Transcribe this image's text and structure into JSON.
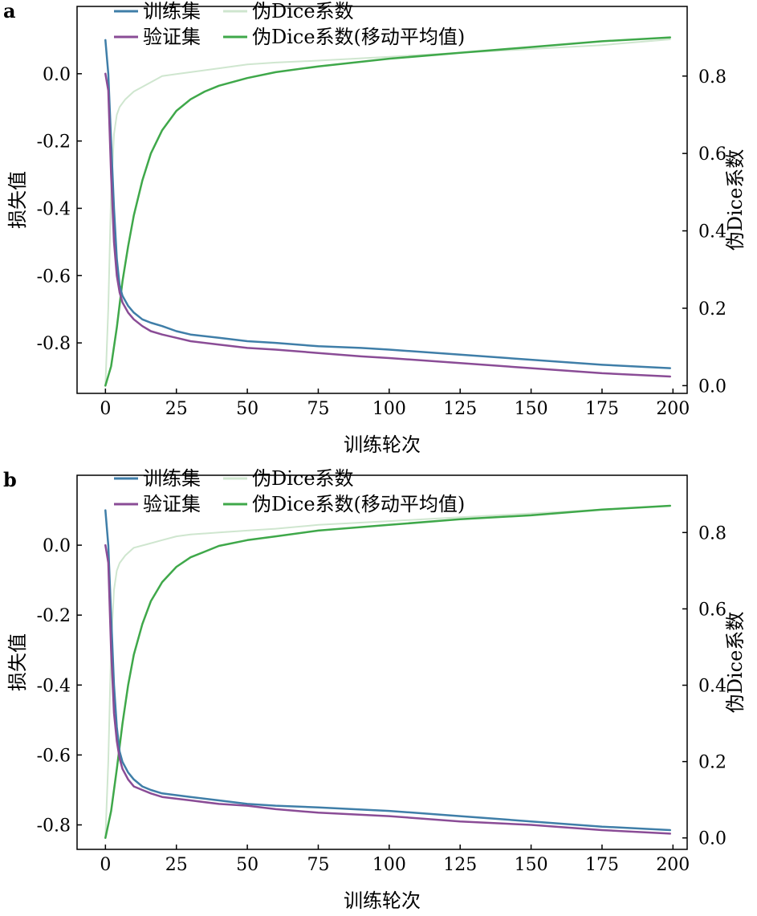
{
  "chart_data": [
    {
      "panel": "a",
      "type": "line",
      "xlabel": "训练轮次",
      "ylabel": "损失值",
      "ylabel_right": "伪Dice系数",
      "xlim": [
        -10,
        205
      ],
      "ylim": [
        -0.95,
        0.2
      ],
      "ylim_right": [
        -0.02,
        0.98
      ],
      "xticks": [
        "0",
        "25",
        "50",
        "75",
        "100",
        "125",
        "150",
        "175",
        "200"
      ],
      "yticks": [
        "0.0",
        "-0.2",
        "-0.4",
        "-0.6",
        "-0.8"
      ],
      "yticks_right": [
        "0.8",
        "0.6",
        "0.4",
        "0.2",
        "0.0"
      ],
      "grid": false,
      "legend": "top-center",
      "series": [
        {
          "name": "训练集",
          "axis": "left",
          "color": "#3f7ea8",
          "x": [
            0,
            1,
            2,
            3,
            4,
            5,
            6,
            8,
            10,
            13,
            16,
            20,
            25,
            30,
            40,
            50,
            60,
            75,
            90,
            100,
            125,
            150,
            175,
            199
          ],
          "y": [
            0.1,
            0.0,
            -0.2,
            -0.4,
            -0.55,
            -0.63,
            -0.66,
            -0.69,
            -0.71,
            -0.73,
            -0.74,
            -0.75,
            -0.765,
            -0.775,
            -0.785,
            -0.795,
            -0.8,
            -0.81,
            -0.815,
            -0.82,
            -0.835,
            -0.85,
            -0.865,
            -0.875
          ]
        },
        {
          "name": "验证集",
          "axis": "left",
          "color": "#8a4c96",
          "x": [
            0,
            1,
            2,
            3,
            4,
            5,
            6,
            8,
            10,
            13,
            16,
            20,
            25,
            30,
            40,
            50,
            60,
            75,
            90,
            100,
            125,
            150,
            175,
            199
          ],
          "y": [
            0.0,
            -0.05,
            -0.3,
            -0.5,
            -0.6,
            -0.65,
            -0.68,
            -0.71,
            -0.73,
            -0.75,
            -0.765,
            -0.775,
            -0.785,
            -0.795,
            -0.805,
            -0.815,
            -0.82,
            -0.83,
            -0.84,
            -0.845,
            -0.86,
            -0.875,
            -0.89,
            -0.9
          ]
        },
        {
          "name": "伪Dice系数",
          "axis": "right",
          "color": "#cfe6cf",
          "x": [
            0,
            1,
            2,
            3,
            4,
            5,
            7,
            10,
            15,
            20,
            25,
            30,
            40,
            50,
            60,
            75,
            100,
            125,
            150,
            175,
            199
          ],
          "y": [
            0.0,
            0.2,
            0.5,
            0.65,
            0.7,
            0.72,
            0.74,
            0.76,
            0.78,
            0.8,
            0.805,
            0.81,
            0.82,
            0.83,
            0.835,
            0.84,
            0.85,
            0.86,
            0.87,
            0.88,
            0.895
          ]
        },
        {
          "name": "伪Dice系数(移动平均值)",
          "axis": "right",
          "color": "#3fa84a",
          "x": [
            0,
            2,
            4,
            6,
            8,
            10,
            13,
            16,
            20,
            25,
            30,
            35,
            40,
            50,
            60,
            75,
            100,
            125,
            150,
            175,
            199
          ],
          "y": [
            0.0,
            0.05,
            0.15,
            0.27,
            0.36,
            0.44,
            0.53,
            0.6,
            0.66,
            0.71,
            0.74,
            0.76,
            0.775,
            0.795,
            0.81,
            0.825,
            0.845,
            0.86,
            0.875,
            0.89,
            0.9
          ]
        }
      ]
    },
    {
      "panel": "b",
      "type": "line",
      "xlabel": "训练轮次",
      "ylabel": "损失值",
      "ylabel_right": "伪Dice系数",
      "xlim": [
        -10,
        205
      ],
      "ylim": [
        -0.87,
        0.2
      ],
      "ylim_right": [
        -0.03,
        0.95
      ],
      "xticks": [
        "0",
        "25",
        "50",
        "75",
        "100",
        "125",
        "150",
        "175",
        "200"
      ],
      "yticks": [
        "0.0",
        "-0.2",
        "-0.4",
        "-0.6",
        "-0.8"
      ],
      "yticks_right": [
        "0.8",
        "0.6",
        "0.4",
        "0.2",
        "0.0"
      ],
      "grid": false,
      "legend": "top-center",
      "series": [
        {
          "name": "训练集",
          "axis": "left",
          "color": "#3f7ea8",
          "x": [
            0,
            1,
            2,
            3,
            4,
            5,
            6,
            8,
            10,
            13,
            16,
            20,
            25,
            30,
            40,
            50,
            60,
            75,
            100,
            125,
            150,
            175,
            199
          ],
          "y": [
            0.1,
            0.0,
            -0.2,
            -0.4,
            -0.52,
            -0.59,
            -0.62,
            -0.65,
            -0.67,
            -0.69,
            -0.7,
            -0.71,
            -0.715,
            -0.72,
            -0.73,
            -0.74,
            -0.745,
            -0.75,
            -0.76,
            -0.775,
            -0.79,
            -0.805,
            -0.815
          ]
        },
        {
          "name": "验证集",
          "axis": "left",
          "color": "#8a4c96",
          "x": [
            0,
            1,
            2,
            3,
            4,
            5,
            6,
            8,
            10,
            13,
            16,
            20,
            25,
            30,
            40,
            50,
            60,
            75,
            100,
            125,
            150,
            175,
            199
          ],
          "y": [
            0.0,
            -0.05,
            -0.3,
            -0.48,
            -0.56,
            -0.61,
            -0.64,
            -0.67,
            -0.69,
            -0.7,
            -0.71,
            -0.72,
            -0.725,
            -0.73,
            -0.74,
            -0.745,
            -0.755,
            -0.765,
            -0.775,
            -0.79,
            -0.8,
            -0.815,
            -0.825
          ]
        },
        {
          "name": "伪Dice系数",
          "axis": "right",
          "color": "#cfe6cf",
          "x": [
            0,
            1,
            2,
            3,
            4,
            5,
            7,
            10,
            15,
            20,
            25,
            30,
            40,
            50,
            60,
            75,
            100,
            125,
            150,
            175,
            199
          ],
          "y": [
            0.0,
            0.2,
            0.5,
            0.65,
            0.7,
            0.72,
            0.74,
            0.76,
            0.77,
            0.78,
            0.79,
            0.795,
            0.8,
            0.805,
            0.81,
            0.82,
            0.83,
            0.84,
            0.85,
            0.86,
            0.87
          ]
        },
        {
          "name": "伪Dice系数(移动平均值)",
          "axis": "right",
          "color": "#3fa84a",
          "x": [
            0,
            2,
            4,
            6,
            8,
            10,
            13,
            16,
            20,
            25,
            30,
            35,
            40,
            50,
            60,
            75,
            100,
            125,
            150,
            175,
            199
          ],
          "y": [
            0.0,
            0.07,
            0.18,
            0.3,
            0.4,
            0.48,
            0.56,
            0.62,
            0.67,
            0.71,
            0.735,
            0.75,
            0.765,
            0.78,
            0.79,
            0.805,
            0.82,
            0.835,
            0.845,
            0.86,
            0.87
          ]
        }
      ]
    }
  ]
}
